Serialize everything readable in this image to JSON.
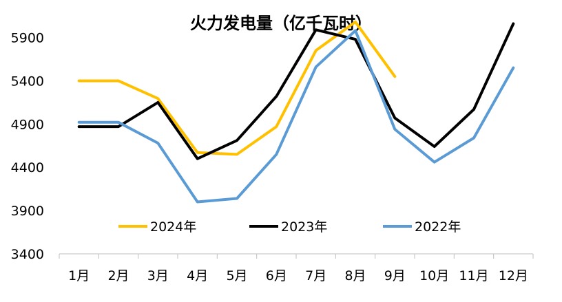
{
  "chart_data": {
    "type": "line",
    "title": "火力发电量（亿千瓦时）",
    "categories": [
      "1月",
      "2月",
      "3月",
      "4月",
      "5月",
      "6月",
      "7月",
      "8月",
      "9月",
      "10月",
      "11月",
      "12月"
    ],
    "ylim": [
      3400,
      6000
    ],
    "yticks": [
      3400,
      3900,
      4400,
      4900,
      5400,
      5900
    ],
    "grid": false,
    "legend": "bottom-inside",
    "series": [
      {
        "name": "2024年",
        "color": "#FFC000",
        "values": [
          5400,
          5400,
          5195,
          4570,
          4550,
          4870,
          5750,
          6080,
          5450,
          null,
          null,
          null
        ]
      },
      {
        "name": "2023年",
        "color": "#000000",
        "values": [
          4870,
          4870,
          5150,
          4500,
          4710,
          5220,
          5990,
          5880,
          4970,
          4640,
          5070,
          6060
        ]
      },
      {
        "name": "2022年",
        "color": "#5B9BD5",
        "values": [
          4920,
          4920,
          4680,
          4000,
          4040,
          4550,
          5560,
          5980,
          4840,
          4460,
          4740,
          5550
        ]
      }
    ]
  }
}
